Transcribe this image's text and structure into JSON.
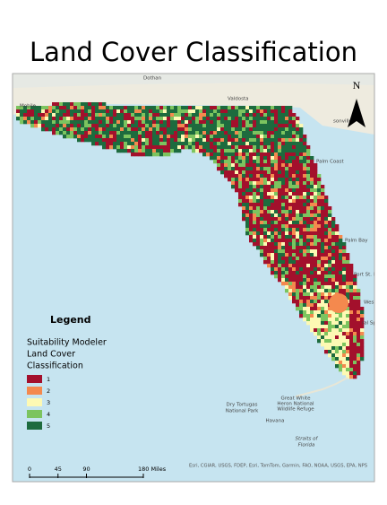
{
  "title": "Land Cover Classification",
  "legend": {
    "title": "Legend",
    "heading": [
      "Suitability Modeler",
      "Land Cover",
      "Classification"
    ],
    "items": [
      {
        "label": "1",
        "color": "#a3102c"
      },
      {
        "label": "2",
        "color": "#f4894e"
      },
      {
        "label": "3",
        "color": "#fdf9b4"
      },
      {
        "label": "4",
        "color": "#7cc45f"
      },
      {
        "label": "5",
        "color": "#1d6b3e"
      }
    ]
  },
  "north_arrow": {
    "label": "N"
  },
  "scale_bar": {
    "ticks": [
      0,
      45,
      90,
      {
        "value": 180,
        "label": "180 Miles"
      }
    ]
  },
  "places": [
    "Dothan",
    "Valdosta",
    "Mobile",
    "sonville",
    "Palm Coast",
    "Palm Bay",
    "Port St. L",
    "West",
    "ral Sp",
    "Dry Tortugas",
    "National Park",
    "Great White",
    "Heron National",
    "Wildlife Refuge",
    "Havana",
    "Straits of",
    "Florida"
  ],
  "attribution": "Esri, CGIAR, USGS, FDEP, Esri, TomTom, Garmin, FAO, NOAA, USGS, EPA, NPS"
}
